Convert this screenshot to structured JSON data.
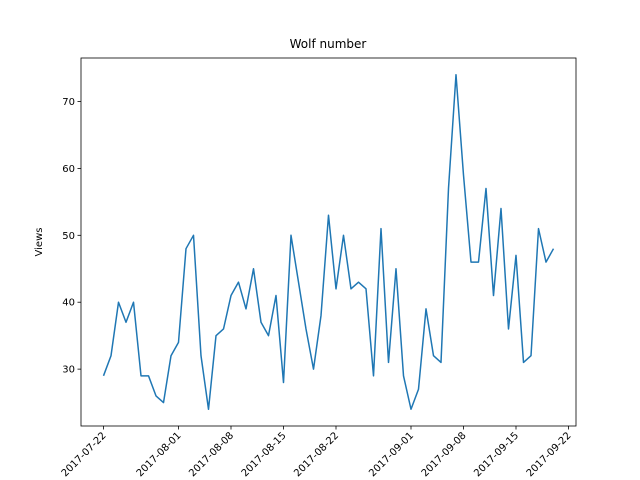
{
  "chart_data": {
    "type": "line",
    "title": "Wolf number",
    "y_label": "Views",
    "x": [
      "2017-07-22",
      "2017-07-23",
      "2017-07-24",
      "2017-07-25",
      "2017-07-26",
      "2017-07-27",
      "2017-07-28",
      "2017-07-29",
      "2017-07-30",
      "2017-07-31",
      "2017-08-01",
      "2017-08-02",
      "2017-08-03",
      "2017-08-04",
      "2017-08-05",
      "2017-08-06",
      "2017-08-07",
      "2017-08-08",
      "2017-08-09",
      "2017-08-10",
      "2017-08-11",
      "2017-08-12",
      "2017-08-13",
      "2017-08-14",
      "2017-08-15",
      "2017-08-16",
      "2017-08-17",
      "2017-08-18",
      "2017-08-19",
      "2017-08-20",
      "2017-08-21",
      "2017-08-22",
      "2017-08-23",
      "2017-08-24",
      "2017-08-25",
      "2017-08-26",
      "2017-08-27",
      "2017-08-28",
      "2017-08-29",
      "2017-08-30",
      "2017-08-31",
      "2017-09-01",
      "2017-09-02",
      "2017-09-03",
      "2017-09-04",
      "2017-09-05",
      "2017-09-06",
      "2017-09-07",
      "2017-09-08",
      "2017-09-09",
      "2017-09-10",
      "2017-09-11",
      "2017-09-12",
      "2017-09-13",
      "2017-09-14",
      "2017-09-15",
      "2017-09-16",
      "2017-09-17",
      "2017-09-18",
      "2017-09-19",
      "2017-09-20"
    ],
    "series": [
      {
        "name": "Views",
        "color": "#1f77b4",
        "values": [
          29,
          32,
          40,
          37,
          40,
          29,
          29,
          26,
          25,
          32,
          34,
          48,
          50,
          32,
          24,
          35,
          36,
          41,
          43,
          39,
          45,
          37,
          35,
          41,
          28,
          50,
          43,
          36,
          30,
          38,
          53,
          42,
          50,
          42,
          43,
          42,
          29,
          51,
          31,
          45,
          29,
          24,
          27,
          39,
          32,
          31,
          57,
          74,
          59,
          46,
          46,
          57,
          41,
          54,
          36,
          47,
          31,
          32,
          51,
          46,
          48
        ]
      }
    ],
    "xlim": [
      "2017-07-19",
      "2017-09-23"
    ],
    "xticks": [
      "2017-07-22",
      "2017-08-01",
      "2017-08-08",
      "2017-08-15",
      "2017-08-22",
      "2017-09-01",
      "2017-09-08",
      "2017-09-15",
      "2017-09-22"
    ],
    "ylim": [
      21.5,
      76.5
    ],
    "yticks": [
      30,
      40,
      50,
      60,
      70
    ],
    "grid": false
  }
}
